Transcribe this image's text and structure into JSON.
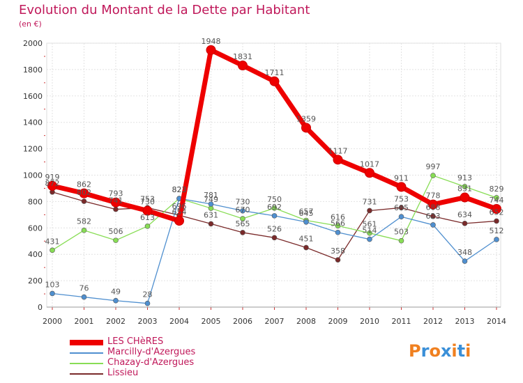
{
  "title": "Evolution du Montant de la Dette par Habitant",
  "subtitle": "(en €)",
  "logo": {
    "text": "Proxiti",
    "letters": [
      "P",
      "r",
      "o",
      "x",
      "i",
      "t",
      "i"
    ],
    "colors": [
      "#f08020",
      "#3a8fd8",
      "#f08020",
      "#3a8fd8",
      "#f08020",
      "#3a8fd8",
      "#f08020"
    ]
  },
  "chart_data": {
    "type": "line",
    "title": "Evolution du Montant de la Dette par Habitant",
    "ylabel": "(en €)",
    "xlabel": "",
    "x": [
      "2000",
      "2001",
      "2002",
      "2003",
      "2004",
      "2005",
      "2006",
      "2007",
      "2008",
      "2009",
      "2010",
      "2011",
      "2012",
      "2013",
      "2014"
    ],
    "ylim": [
      0,
      2000
    ],
    "yticks": [
      "0",
      "200",
      "400",
      "600",
      "800",
      "1000",
      "1200",
      "1400",
      "1600",
      "1800",
      "2000"
    ],
    "grid": true,
    "legend_position": "bottom-left",
    "series": [
      {
        "name": "LES CHèRES",
        "color": "#ee0000",
        "values": [
          919,
          862,
          793,
          730,
          654,
          1948,
          1831,
          1711,
          1359,
          1117,
          1017,
          911,
          778,
          831,
          744
        ],
        "labels": [
          "919",
          "862",
          "793",
          "730",
          "654",
          "1948",
          "1831",
          "1711",
          "1359",
          "1117",
          "1017",
          "911",
          "778",
          "831",
          "744"
        ]
      },
      {
        "name": "Marcilly-d'Azergues",
        "color": "#4f8fcf",
        "values": [
          103,
          76,
          49,
          28,
          823,
          781,
          730,
          692,
          645,
          566,
          514,
          685,
          623,
          348,
          512
        ],
        "labels": [
          "103",
          "76",
          "49",
          "28",
          "823",
          "781",
          "730",
          "692",
          "645",
          "566",
          "514",
          "685",
          "623",
          "348",
          "512"
        ]
      },
      {
        "name": "Chazay-d'Azergues",
        "color": "#88dd55",
        "values": [
          431,
          582,
          506,
          613,
          823,
          749,
          670,
          750,
          657,
          616,
          561,
          503,
          997,
          913,
          829
        ],
        "labels": [
          "431",
          "582",
          "506",
          "613",
          "823",
          "749",
          "670",
          "750",
          "657",
          "616",
          "561",
          "503",
          "997",
          "913",
          "829"
        ]
      },
      {
        "name": "Lissieu",
        "color": "#7a2a2a",
        "values": [
          872,
          802,
          741,
          753,
          696,
          631,
          565,
          526,
          451,
          358,
          731,
          753,
          688,
          634,
          652
        ],
        "labels": [
          "872",
          "802",
          "741",
          "753",
          "696",
          "631",
          "565",
          "526",
          "451",
          "358",
          "731",
          "753",
          "688",
          "634",
          "652"
        ]
      }
    ]
  }
}
